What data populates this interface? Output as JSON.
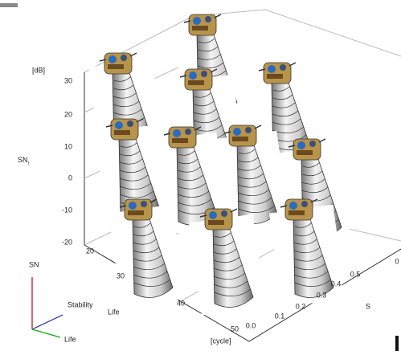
{
  "axes": {
    "sn": {
      "label": "SN",
      "subscript": "r",
      "unit": "[dB]",
      "ticks": [
        "30",
        "20",
        "10",
        "0",
        "-10",
        "-20"
      ]
    },
    "life": {
      "unit": "[cycle]",
      "ticks": [
        "20",
        "30",
        "40",
        "50"
      ]
    },
    "stability": {
      "label": "S",
      "ticks": [
        "0.0",
        "0.1",
        "0.2",
        "0.3",
        "0.4",
        "0.5",
        "0"
      ]
    }
  },
  "legend": {
    "sn": "SN",
    "stability": "Stability",
    "stability_sub": "Life",
    "life": "Life"
  }
}
